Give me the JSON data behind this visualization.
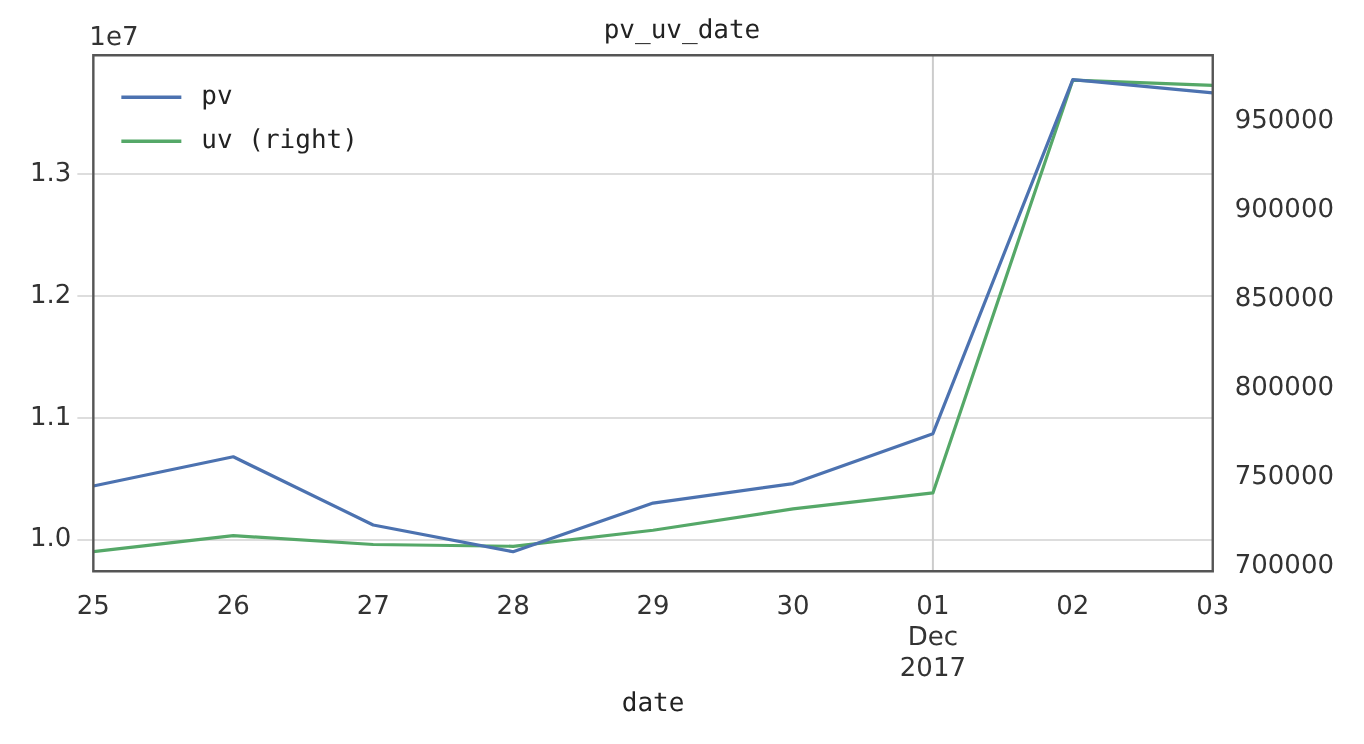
{
  "chart_data": {
    "type": "line",
    "title": "pv_uv_date",
    "xlabel": "date",
    "categories": [
      "25",
      "26",
      "27",
      "28",
      "29",
      "30",
      "01\nDec\n2017",
      "02",
      "03"
    ],
    "series": [
      {
        "name": "pv",
        "color": "#4c72b0",
        "values": [
          1.044,
          1.068,
          1.012,
          0.99,
          1.03,
          1.046,
          1.087,
          1.378,
          1.367
        ]
      },
      {
        "name": "uv (right)",
        "color": "#55a868",
        "axis": "y2",
        "values": [
          708000,
          717000,
          712000,
          711000,
          720000,
          732000,
          741000,
          973000,
          970000
        ]
      }
    ],
    "ylim": [
      0.974,
      1.398
    ],
    "yticks": [
      {
        "value": 1.0,
        "label": "1.0"
      },
      1.1,
      1.2,
      1.3
    ],
    "y2lim": [
      697000,
      987000
    ],
    "y2ticks": [
      700000,
      750000,
      800000,
      850000,
      900000,
      950000
    ],
    "annotations": [
      "1e7"
    ],
    "ref_lines": [
      {
        "axis": "x",
        "value": "01\nDec\n2017",
        "color": "#cccccc"
      }
    ],
    "grid": "y",
    "legend": "top left",
    "marker": "none",
    "line_style": "solid"
  }
}
